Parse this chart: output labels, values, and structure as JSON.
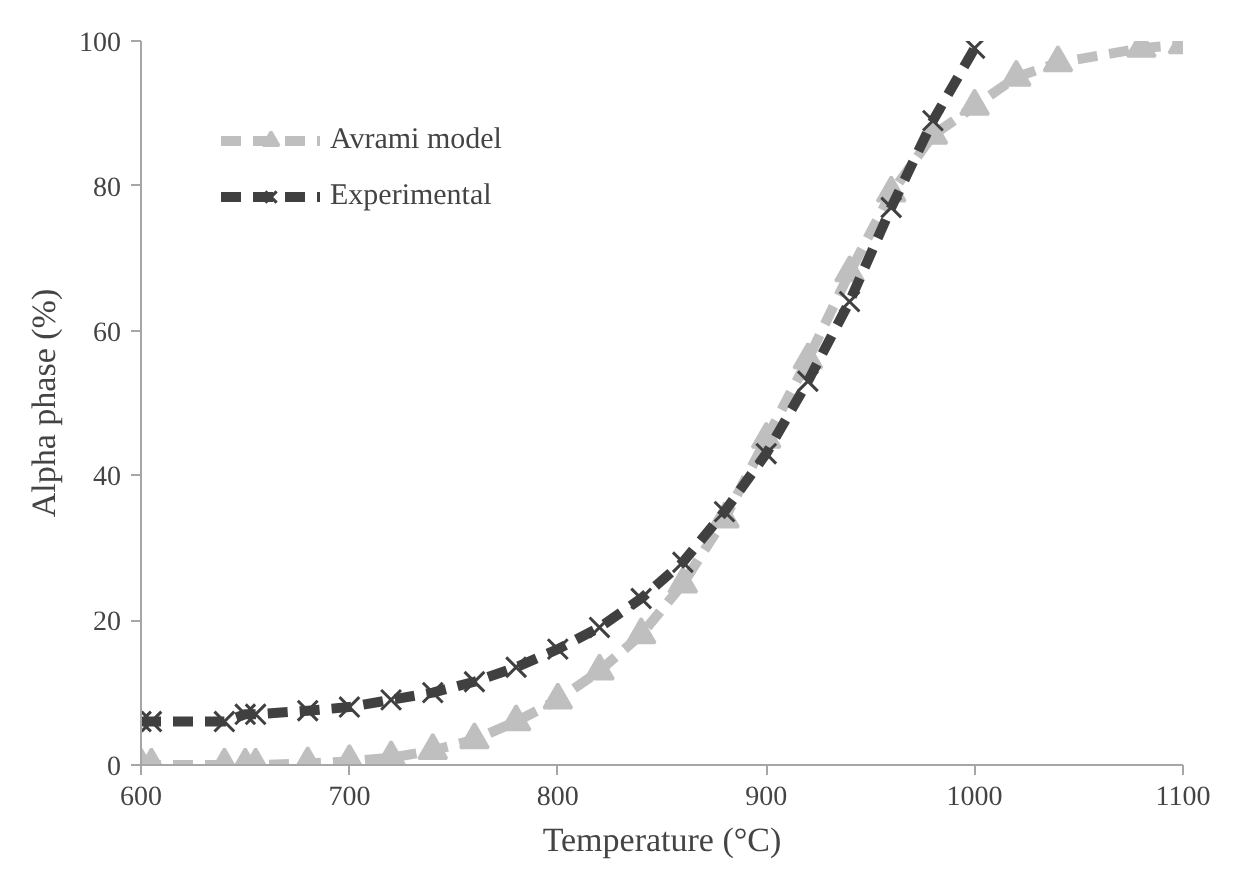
{
  "chart_data": {
    "type": "line",
    "xlabel": "Temperature (°C)",
    "ylabel": "Alpha phase (%)",
    "xlim": [
      600,
      1100
    ],
    "xticks": [
      600,
      700,
      800,
      900,
      1000,
      1100
    ],
    "ylim": [
      0,
      100
    ],
    "yticks": [
      0,
      20,
      40,
      60,
      80,
      100
    ],
    "grid": false,
    "legend": "top left",
    "line_style": "dashed",
    "series": [
      {
        "name": "Avrami model",
        "color": "#bfbfbf",
        "marker": "triangle",
        "x": [
          600,
          605,
          640,
          650,
          655,
          680,
          700,
          720,
          740,
          760,
          780,
          800,
          820,
          840,
          860,
          880,
          900,
          920,
          940,
          960,
          980,
          1000,
          1020,
          1040,
          1080,
          1100
        ],
        "values": [
          0,
          0,
          0,
          0,
          0,
          0.2,
          0.5,
          1,
          2,
          3.5,
          6,
          9,
          13,
          18,
          25,
          34,
          45,
          56,
          68,
          79,
          87,
          91,
          95,
          97,
          99,
          99.5
        ]
      },
      {
        "name": "Experimental",
        "color": "#404040",
        "marker": "cross",
        "x": [
          600,
          605,
          640,
          650,
          655,
          680,
          700,
          720,
          740,
          760,
          780,
          800,
          820,
          840,
          860,
          880,
          900,
          920,
          940,
          960,
          980,
          1000
        ],
        "values": [
          6,
          6,
          6,
          7,
          7,
          7.5,
          8,
          9,
          10,
          11.5,
          13.5,
          16,
          19,
          23,
          28,
          35,
          43,
          53,
          64,
          77,
          89,
          99
        ]
      }
    ]
  }
}
